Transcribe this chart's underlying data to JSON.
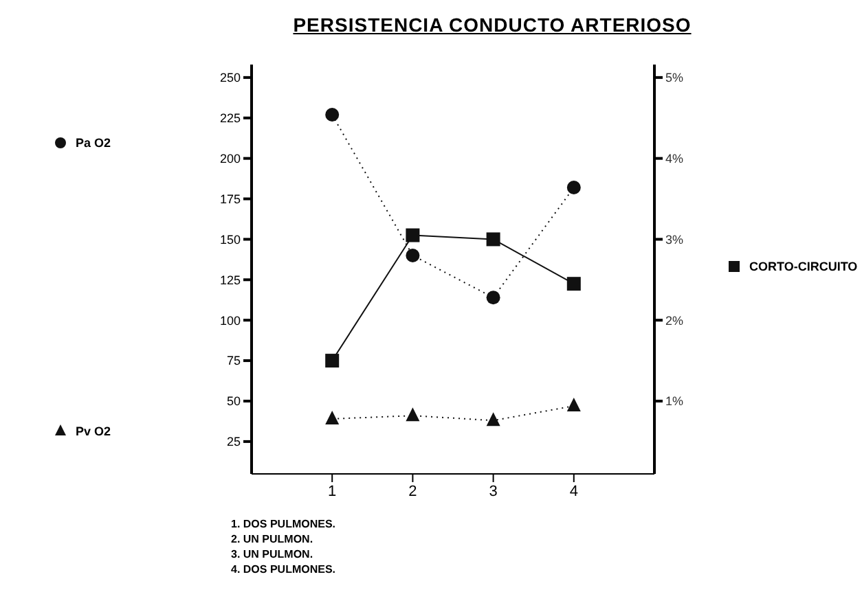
{
  "chart_data": {
    "type": "line",
    "title": "PERSISTENCIA CONDUCTO ARTERIOSO",
    "x": [
      1,
      2,
      3,
      4
    ],
    "xlim": [
      0,
      5
    ],
    "xticks": [
      1,
      2,
      3,
      4
    ],
    "ylim": [
      5,
      258
    ],
    "yticks": [
      25,
      50,
      75,
      100,
      125,
      150,
      175,
      200,
      225,
      250
    ],
    "y2lim": [
      0.1,
      5.16
    ],
    "y2ticks": [
      {
        "value": 1,
        "label": "1%"
      },
      {
        "value": 2,
        "label": "2%"
      },
      {
        "value": 3,
        "label": "3%"
      },
      {
        "value": 4,
        "label": "4%"
      },
      {
        "value": 5,
        "label": "5%"
      }
    ],
    "series": [
      {
        "name": "Pa O2",
        "color": "#111111",
        "marker": "circle",
        "line_style": "dotted",
        "values": [
          227,
          140,
          114,
          182
        ]
      },
      {
        "name": "Pv O2",
        "color": "#111111",
        "marker": "triangle",
        "line_style": "dotted",
        "values": [
          39,
          41,
          38,
          47
        ]
      },
      {
        "name": "CORTO-CIRCUITO",
        "color": "#111111",
        "marker": "square",
        "line_style": "solid",
        "axis": "y2",
        "values": [
          1.5,
          3.05,
          3.0,
          2.45
        ]
      }
    ],
    "legend": "left",
    "annotations": [
      "1. DOS PULMONES.",
      "2. UN PULMON.",
      "3. UN PULMON.",
      "4. DOS PULMONES."
    ]
  }
}
